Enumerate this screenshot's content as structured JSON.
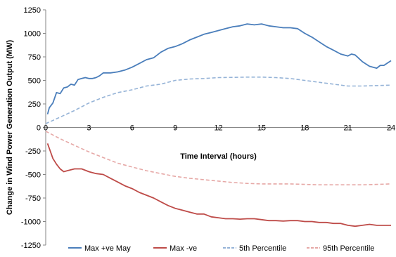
{
  "chart_data": {
    "type": "line",
    "title": "",
    "xlabel": "Time Interval (hours)",
    "ylabel": "Change in Wind Power Generation Output (MW)",
    "xlim": [
      0,
      24
    ],
    "ylim": [
      -1250,
      1250
    ],
    "xticks": [
      "0",
      "3",
      "6",
      "9",
      "12",
      "15",
      "18",
      "21",
      "24"
    ],
    "yticks": [
      "1250",
      "1000",
      "750",
      "500",
      "250",
      "0",
      "-250",
      "-500",
      "-750",
      "-1000",
      "-1250"
    ],
    "grid": false,
    "legend_position": "bottom",
    "series": [
      {
        "name": "Max +ve May",
        "color": "#4a7ebb",
        "style": "solid",
        "x": [
          0.125,
          0.25,
          0.5,
          0.75,
          1,
          1.25,
          1.5,
          1.75,
          2,
          2.25,
          2.5,
          2.75,
          3,
          3.25,
          3.5,
          3.75,
          4,
          4.5,
          5,
          5.5,
          6,
          6.5,
          7,
          7.5,
          8,
          8.5,
          9,
          9.5,
          10,
          10.5,
          11,
          11.5,
          12,
          12.5,
          13,
          13.5,
          14,
          14.5,
          15,
          15.5,
          16,
          16.5,
          17,
          17.5,
          18,
          18.5,
          19,
          19.5,
          20,
          20.5,
          21,
          21.25,
          21.5,
          22,
          22.5,
          23,
          23.25,
          23.5,
          24
        ],
        "values": [
          140,
          210,
          260,
          370,
          360,
          420,
          430,
          460,
          450,
          510,
          520,
          530,
          520,
          520,
          530,
          550,
          580,
          580,
          590,
          610,
          640,
          680,
          720,
          740,
          800,
          840,
          860,
          890,
          930,
          960,
          990,
          1010,
          1030,
          1050,
          1070,
          1080,
          1100,
          1090,
          1100,
          1080,
          1070,
          1060,
          1060,
          1050,
          1000,
          960,
          910,
          860,
          820,
          780,
          760,
          780,
          770,
          700,
          650,
          630,
          660,
          660,
          710
        ]
      },
      {
        "name": "Max -ve",
        "color": "#be4b48",
        "style": "solid",
        "x": [
          0.125,
          0.5,
          0.75,
          1,
          1.25,
          1.5,
          2,
          2.5,
          3,
          3.5,
          4,
          4.5,
          5,
          5.5,
          6,
          6.5,
          7,
          7.5,
          8,
          8.5,
          9,
          9.5,
          10,
          10.5,
          11,
          11.5,
          12,
          12.5,
          13,
          13.5,
          14,
          14.5,
          15,
          15.5,
          16,
          16.5,
          17,
          17.5,
          18,
          18.5,
          19,
          19.5,
          20,
          20.5,
          21,
          21.5,
          22,
          22.5,
          23,
          23.5,
          24
        ],
        "values": [
          -170,
          -330,
          -390,
          -440,
          -470,
          -460,
          -440,
          -440,
          -470,
          -490,
          -500,
          -540,
          -580,
          -620,
          -650,
          -690,
          -720,
          -750,
          -790,
          -830,
          -860,
          -880,
          -900,
          -920,
          -920,
          -950,
          -960,
          -970,
          -970,
          -975,
          -970,
          -970,
          -980,
          -990,
          -990,
          -995,
          -990,
          -990,
          -1000,
          -1000,
          -1010,
          -1010,
          -1020,
          -1020,
          -1040,
          -1050,
          -1040,
          -1030,
          -1040,
          -1040,
          -1040
        ]
      },
      {
        "name": "5th Percentile",
        "color": "#95b3d7",
        "style": "dashed",
        "x": [
          0,
          1,
          2,
          3,
          4,
          5,
          6,
          7,
          8,
          9,
          10,
          11,
          12,
          13,
          14,
          15,
          16,
          17,
          18,
          19,
          20,
          21,
          22,
          23,
          24
        ],
        "values": [
          40,
          110,
          180,
          260,
          320,
          370,
          400,
          440,
          460,
          500,
          515,
          520,
          530,
          532,
          535,
          535,
          530,
          520,
          500,
          480,
          460,
          440,
          440,
          445,
          450
        ]
      },
      {
        "name": "95th Percentile",
        "color": "#e6a8a6",
        "style": "dashed",
        "x": [
          0,
          1,
          2,
          3,
          4,
          5,
          6,
          7,
          8,
          9,
          10,
          11,
          12,
          13,
          14,
          15,
          16,
          17,
          18,
          19,
          20,
          21,
          22,
          23,
          24
        ],
        "values": [
          -40,
          -120,
          -190,
          -260,
          -320,
          -380,
          -420,
          -460,
          -490,
          -520,
          -540,
          -555,
          -570,
          -585,
          -595,
          -600,
          -600,
          -600,
          -605,
          -610,
          -610,
          -610,
          -610,
          -605,
          -600
        ]
      }
    ]
  }
}
